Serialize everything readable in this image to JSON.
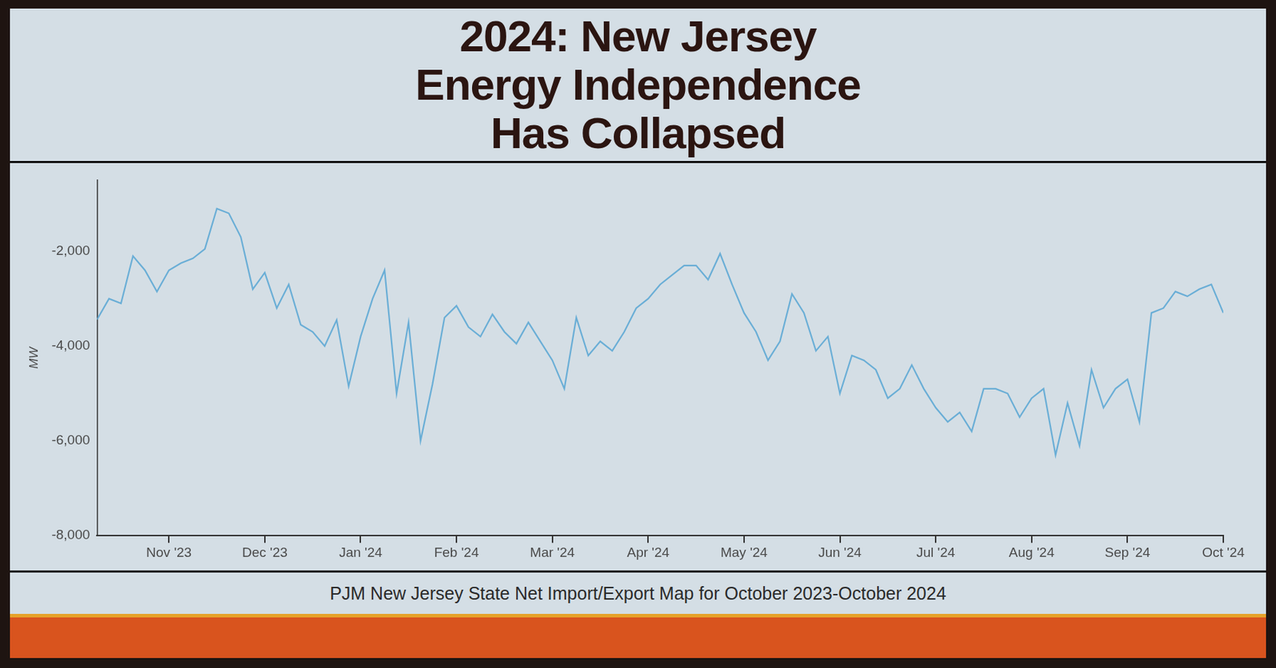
{
  "chart_data": {
    "type": "line",
    "title": [
      "2024: New Jersey",
      "Energy Independence",
      "Has Collapsed"
    ],
    "caption": "PJM New Jersey State Net Import/Export Map for October 2023-October 2024",
    "y_label": "MW",
    "categories": [
      null,
      null,
      null,
      null,
      null,
      null,
      "Nov '23",
      null,
      null,
      null,
      null,
      null,
      null,
      null,
      "Dec '23",
      null,
      null,
      null,
      null,
      null,
      null,
      null,
      "Jan '24",
      null,
      null,
      null,
      null,
      null,
      null,
      null,
      "Feb '24",
      null,
      null,
      null,
      null,
      null,
      null,
      null,
      "Mar '24",
      null,
      null,
      null,
      null,
      null,
      null,
      null,
      "Apr '24",
      null,
      null,
      null,
      null,
      null,
      null,
      null,
      "May '24",
      null,
      null,
      null,
      null,
      null,
      null,
      null,
      "Jun '24",
      null,
      null,
      null,
      null,
      null,
      null,
      null,
      "Jul '24",
      null,
      null,
      null,
      null,
      null,
      null,
      null,
      "Aug '24",
      null,
      null,
      null,
      null,
      null,
      null,
      null,
      "Sep '24",
      null,
      null,
      null,
      null,
      null,
      null,
      null,
      "Oct '24"
    ],
    "values": [
      -3440,
      -3000,
      -3100,
      -2100,
      -2400,
      -2850,
      -2400,
      -2250,
      -2150,
      -1950,
      -1100,
      -1200,
      -1700,
      -2800,
      -2450,
      -3200,
      -2700,
      -3550,
      -3700,
      -4000,
      -3450,
      -4850,
      -3800,
      -3000,
      -2400,
      -5000,
      -3500,
      -6000,
      -4800,
      -3400,
      -3150,
      -3600,
      -3800,
      -3330,
      -3700,
      -3950,
      -3500,
      -3900,
      -4300,
      -4900,
      -3400,
      -4200,
      -3900,
      -4100,
      -3700,
      -3200,
      -3000,
      -2700,
      -2500,
      -2300,
      -2300,
      -2600,
      -2050,
      -2700,
      -3300,
      -3700,
      -4300,
      -3900,
      -2900,
      -3300,
      -4100,
      -3800,
      -5000,
      -4200,
      -4300,
      -4500,
      -5100,
      -4900,
      -4400,
      -4900,
      -5300,
      -5600,
      -5400,
      -5800,
      -4900,
      -4900,
      -5000,
      -5500,
      -5100,
      -4900,
      -6300,
      -5200,
      -6100,
      -4500,
      -5300,
      -4900,
      -4700,
      -5600,
      -3300,
      -3200,
      -2850,
      -2950,
      -2800,
      -2700,
      -3300
    ],
    "color": "#6aaed6",
    "ylim": [
      -8000,
      -500
    ],
    "yticks": [
      {
        "value": -8000,
        "label": "-8,000"
      },
      {
        "value": -6000,
        "label": "-6,000"
      },
      {
        "value": -4000,
        "label": "-4,000"
      },
      {
        "value": -2000,
        "label": "-2,000"
      }
    ],
    "grid": false
  }
}
